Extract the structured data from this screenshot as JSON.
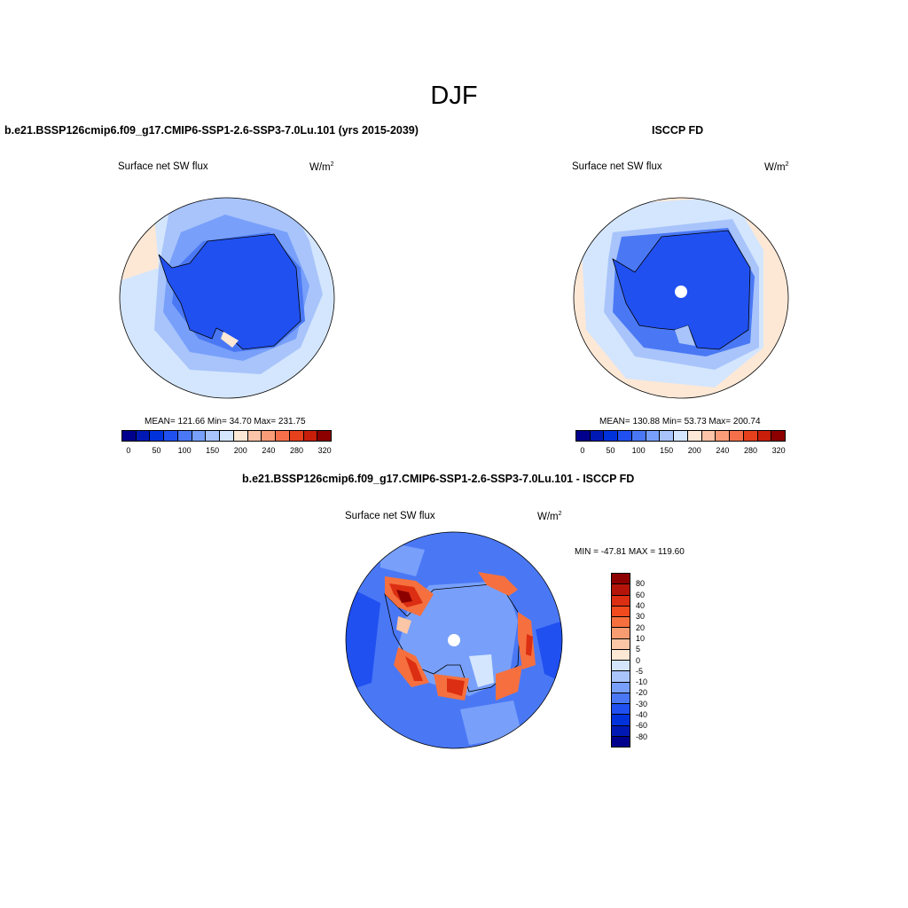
{
  "figure": {
    "title": "DJF",
    "variable": "Surface net SW flux",
    "units_prefix": "W/m",
    "units_sup": "2"
  },
  "panels": {
    "model": {
      "title": "b.e21.BSSP126cmip6.f09_g17.CMIP6-SSP1-2.6-SSP3-7.0Lu.101 (yrs 2015-2039)",
      "stats": "MEAN= 121.66  Min=  34.70  Max= 231.75"
    },
    "obs": {
      "title": "ISCCP FD",
      "stats": "MEAN= 130.88  Min=  53.73  Max= 200.74"
    },
    "diff": {
      "title": "b.e21.BSSP126cmip6.f09_g17.CMIP6-SSP1-2.6-SSP3-7.0Lu.101 - ISCCP FD",
      "stats": "MIN = -47.81 MAX = 119.60"
    }
  },
  "colorbars": {
    "abs": {
      "colors": [
        "#00008c",
        "#0019b4",
        "#0032dc",
        "#2050f0",
        "#4a78f5",
        "#78a0fa",
        "#a8c4fb",
        "#d4e6fd",
        "#fde8d6",
        "#fcc4a8",
        "#fa9c78",
        "#f5704a",
        "#e6401c",
        "#c81e0a",
        "#8c0000"
      ],
      "ticks": [
        "0",
        "50",
        "100",
        "150",
        "200",
        "240",
        "280",
        "320"
      ]
    },
    "diff": {
      "colors": [
        "#8c0000",
        "#b4140a",
        "#dc2e12",
        "#f04a1e",
        "#f5703e",
        "#f89c72",
        "#fbc6a6",
        "#fde8d6",
        "#d4e6fd",
        "#a8c4fb",
        "#78a0fa",
        "#4a78f5",
        "#2050f0",
        "#0032dc",
        "#0019b4",
        "#00008c"
      ],
      "ticks": [
        "80",
        "60",
        "40",
        "30",
        "20",
        "10",
        "5",
        "0",
        "-5",
        "-10",
        "-20",
        "-30",
        "-40",
        "-60",
        "-80"
      ]
    }
  },
  "map_colors": {
    "outer": "#d4e6fd",
    "mid": "#a8c4fb",
    "inner": "#78a0fa",
    "ice_edge": "#4a78f5",
    "land": "#2050f0",
    "warm": "#fde8d6",
    "diff_base": "#4a78f5",
    "diff_low": "#2050f0",
    "diff_light": "#78a0fa",
    "diff_pale": "#d4e6fd",
    "diff_warm1": "#fbc6a6",
    "diff_warm2": "#f5703e",
    "diff_warm3": "#dc2e12",
    "diff_warm4": "#8c0000"
  }
}
